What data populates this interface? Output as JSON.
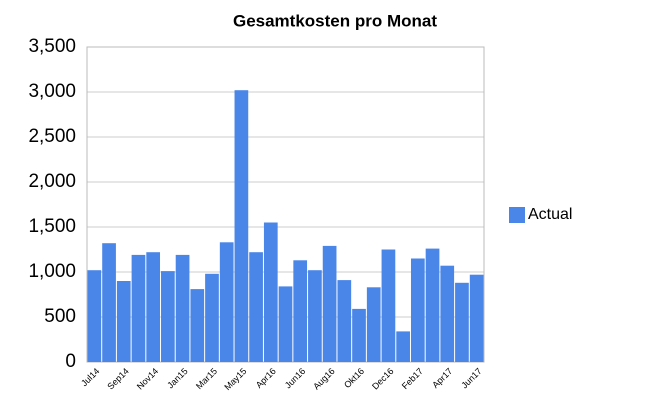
{
  "chart_data": {
    "type": "bar",
    "title": "Gesamtkosten pro Monat",
    "categories": [
      "Jul14",
      null,
      "Sep14",
      null,
      "Nov14",
      null,
      "Jan15",
      null,
      "Mar15",
      null,
      "May15",
      null,
      "Apr16",
      null,
      "Jun16",
      null,
      "Aug16",
      null,
      "Okt16",
      null,
      "Dec16",
      null,
      "Feb17",
      null,
      "Apr17",
      null,
      "Jun17"
    ],
    "series": [
      {
        "name": "Actual",
        "color": "#4a86e8",
        "values": [
          1020,
          1320,
          900,
          1190,
          1220,
          1010,
          1190,
          810,
          980,
          1330,
          3020,
          1220,
          1550,
          840,
          1130,
          1020,
          1290,
          910,
          590,
          830,
          1250,
          340,
          1150,
          1260,
          1070,
          880,
          970
        ]
      }
    ],
    "ylim": [
      0,
      3500
    ],
    "yticks": [
      0,
      500,
      {
        "value": 1000,
        "label": "1,000"
      },
      {
        "value": 1500,
        "label": "1,500"
      },
      {
        "value": 2000,
        "label": "2,000"
      },
      {
        "value": 2500,
        "label": "2,500"
      },
      {
        "value": 3000,
        "label": "3,000"
      },
      {
        "value": 3500,
        "label": "3,500"
      }
    ],
    "grid": true,
    "legend": "right"
  }
}
